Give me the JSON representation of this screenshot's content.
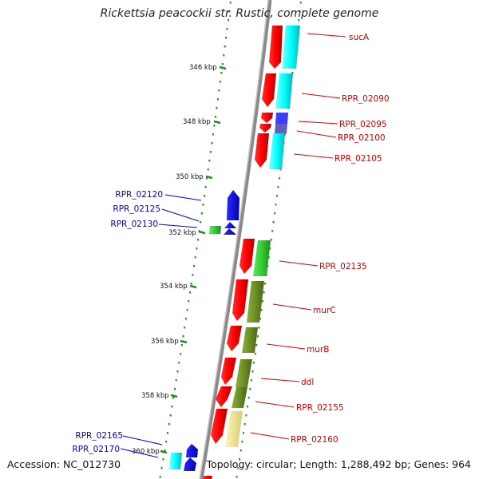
{
  "title": "Rickettsia peacockii str. Rustic, complete genome",
  "accession": "Accession: NC_012730",
  "topology": "Topology: circular; Length: 1,288,492 bp; Genes: 964",
  "colors": {
    "strand_forward": "#ff0000",
    "strand_reverse": "#0000ff",
    "cog_cyan": "#00ffff",
    "cog_green": "#33cc33",
    "cog_olive": "#6b8e23",
    "cog_khaki": "#f0e68c",
    "cog_slate": "#5b5bb5",
    "backbone": "#808080",
    "ruler_dots": "#228b22",
    "label_forward": "#cc0000",
    "label_reverse": "#0000cc"
  },
  "ruler_labels": [
    "346 kbp",
    "348 kbp",
    "350 kbp",
    "352 kbp",
    "354 kbp",
    "356 kbp",
    "358 kbp",
    "360 kbp"
  ],
  "gene_labels_forward": [
    "sucA",
    "RPR_02090",
    "RPR_02095",
    "RPR_02100",
    "RPR_02105",
    "RPR_02135",
    "murC",
    "murB",
    "ddl",
    "RPR_02155",
    "RPR_02160"
  ],
  "gene_labels_reverse": [
    "RPR_02120",
    "RPR_02125",
    "RPR_02130",
    "RPR_02165",
    "RPR_02170"
  ]
}
